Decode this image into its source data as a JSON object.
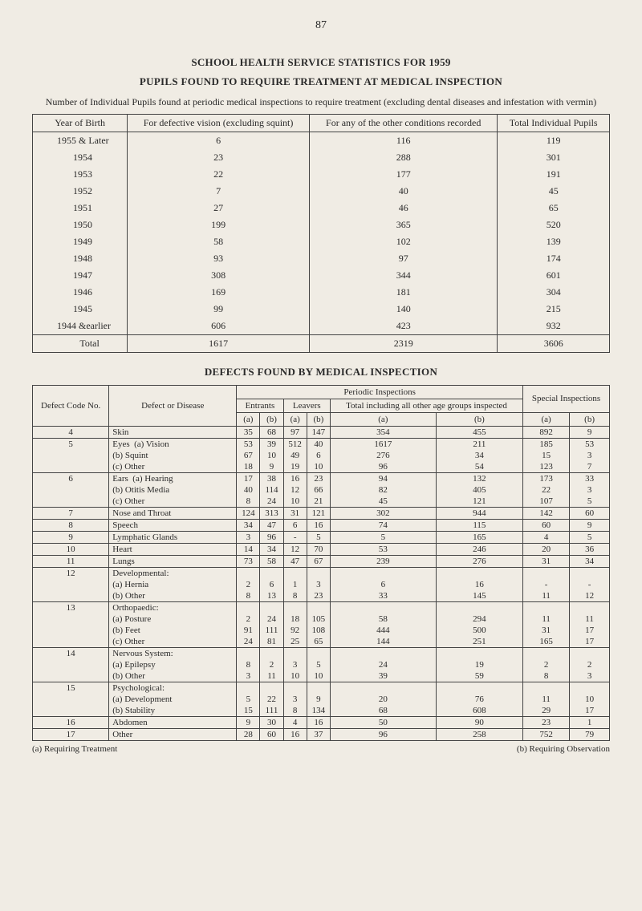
{
  "page_number": "87",
  "title_line1": "SCHOOL HEALTH SERVICE STATISTICS FOR 1959",
  "title_line2": "PUPILS FOUND TO REQUIRE TREATMENT AT MEDICAL INSPECTION",
  "subtitle": "Number of Individual Pupils found at periodic medical inspections to require treatment (excluding dental diseases and infestation with vermin)",
  "table1": {
    "headers": [
      "Year of Birth",
      "For defective vision (excluding squint)",
      "For any of the other conditions recorded",
      "Total Individual Pupils"
    ],
    "rows": [
      {
        "y": "1955 & Later",
        "a": "6",
        "b": "116",
        "c": "119"
      },
      {
        "y": "1954",
        "a": "23",
        "b": "288",
        "c": "301"
      },
      {
        "y": "1953",
        "a": "22",
        "b": "177",
        "c": "191"
      },
      {
        "y": "1952",
        "a": "7",
        "b": "40",
        "c": "45"
      },
      {
        "y": "1951",
        "a": "27",
        "b": "46",
        "c": "65"
      },
      {
        "y": "1950",
        "a": "199",
        "b": "365",
        "c": "520"
      },
      {
        "y": "1949",
        "a": "58",
        "b": "102",
        "c": "139"
      },
      {
        "y": "1948",
        "a": "93",
        "b": "97",
        "c": "174"
      },
      {
        "y": "1947",
        "a": "308",
        "b": "344",
        "c": "601"
      },
      {
        "y": "1946",
        "a": "169",
        "b": "181",
        "c": "304"
      },
      {
        "y": "1945",
        "a": "99",
        "b": "140",
        "c": "215"
      },
      {
        "y": "1944 &earlier",
        "a": "606",
        "b": "423",
        "c": "932"
      }
    ],
    "total": {
      "y": "Total",
      "a": "1617",
      "b": "2319",
      "c": "3606"
    }
  },
  "section2_title": "DEFECTS FOUND BY MEDICAL INSPECTION",
  "table2": {
    "h_defect_no": "Defect Code No.",
    "h_defect": "Defect or Disease",
    "h_periodic": "Periodic Inspections",
    "h_entrants": "Entrants",
    "h_leavers": "Leavers",
    "h_total": "Total including all other age groups inspected",
    "h_special": "Special Inspections",
    "h_a": "(a)",
    "h_b": "(b)",
    "rows": [
      {
        "no": "4",
        "name": "Skin",
        "sub": "",
        "ea": "35",
        "eb": "68",
        "la": "97",
        "lb": "147",
        "ta": "354",
        "tb": "455",
        "sa": "892",
        "sb": "9"
      },
      {
        "no": "5",
        "name": "Eyes",
        "sub": "(a) Vision",
        "ea": "53",
        "eb": "39",
        "la": "512",
        "lb": "40",
        "ta": "1617",
        "tb": "211",
        "sa": "185",
        "sb": "53"
      },
      {
        "no": "",
        "name": "",
        "sub": "(b) Squint",
        "ea": "67",
        "eb": "10",
        "la": "49",
        "lb": "6",
        "ta": "276",
        "tb": "34",
        "sa": "15",
        "sb": "3"
      },
      {
        "no": "",
        "name": "",
        "sub": "(c) Other",
        "ea": "18",
        "eb": "9",
        "la": "19",
        "lb": "10",
        "ta": "96",
        "tb": "54",
        "sa": "123",
        "sb": "7"
      },
      {
        "no": "6",
        "name": "Ears",
        "sub": "(a) Hearing",
        "ea": "17",
        "eb": "38",
        "la": "16",
        "lb": "23",
        "ta": "94",
        "tb": "132",
        "sa": "173",
        "sb": "33"
      },
      {
        "no": "",
        "name": "",
        "sub": "(b) Otitis Media",
        "ea": "40",
        "eb": "114",
        "la": "12",
        "lb": "66",
        "ta": "82",
        "tb": "405",
        "sa": "22",
        "sb": "3"
      },
      {
        "no": "",
        "name": "",
        "sub": "(c) Other",
        "ea": "8",
        "eb": "24",
        "la": "10",
        "lb": "21",
        "ta": "45",
        "tb": "121",
        "sa": "107",
        "sb": "5"
      },
      {
        "no": "7",
        "name": "Nose and Throat",
        "sub": "",
        "ea": "124",
        "eb": "313",
        "la": "31",
        "lb": "121",
        "ta": "302",
        "tb": "944",
        "sa": "142",
        "sb": "60"
      },
      {
        "no": "8",
        "name": "Speech",
        "sub": "",
        "ea": "34",
        "eb": "47",
        "la": "6",
        "lb": "16",
        "ta": "74",
        "tb": "115",
        "sa": "60",
        "sb": "9"
      },
      {
        "no": "9",
        "name": "Lymphatic Glands",
        "sub": "",
        "ea": "3",
        "eb": "96",
        "la": "-",
        "lb": "5",
        "ta": "5",
        "tb": "165",
        "sa": "4",
        "sb": "5"
      },
      {
        "no": "10",
        "name": "Heart",
        "sub": "",
        "ea": "14",
        "eb": "34",
        "la": "12",
        "lb": "70",
        "ta": "53",
        "tb": "246",
        "sa": "20",
        "sb": "36"
      },
      {
        "no": "11",
        "name": "Lungs",
        "sub": "",
        "ea": "73",
        "eb": "58",
        "la": "47",
        "lb": "67",
        "ta": "239",
        "tb": "276",
        "sa": "31",
        "sb": "34"
      },
      {
        "no": "12",
        "name": "Developmental:",
        "sub": "",
        "ea": "",
        "eb": "",
        "la": "",
        "lb": "",
        "ta": "",
        "tb": "",
        "sa": "",
        "sb": ""
      },
      {
        "no": "",
        "name": "",
        "sub": "(a) Hernia",
        "ea": "2",
        "eb": "6",
        "la": "1",
        "lb": "3",
        "ta": "6",
        "tb": "16",
        "sa": "-",
        "sb": "-"
      },
      {
        "no": "",
        "name": "",
        "sub": "(b) Other",
        "ea": "8",
        "eb": "13",
        "la": "8",
        "lb": "23",
        "ta": "33",
        "tb": "145",
        "sa": "11",
        "sb": "12"
      },
      {
        "no": "13",
        "name": "Orthopaedic:",
        "sub": "",
        "ea": "",
        "eb": "",
        "la": "",
        "lb": "",
        "ta": "",
        "tb": "",
        "sa": "",
        "sb": ""
      },
      {
        "no": "",
        "name": "",
        "sub": "(a) Posture",
        "ea": "2",
        "eb": "24",
        "la": "18",
        "lb": "105",
        "ta": "58",
        "tb": "294",
        "sa": "11",
        "sb": "11"
      },
      {
        "no": "",
        "name": "",
        "sub": "(b) Feet",
        "ea": "91",
        "eb": "111",
        "la": "92",
        "lb": "108",
        "ta": "444",
        "tb": "500",
        "sa": "31",
        "sb": "17"
      },
      {
        "no": "",
        "name": "",
        "sub": "(c) Other",
        "ea": "24",
        "eb": "81",
        "la": "25",
        "lb": "65",
        "ta": "144",
        "tb": "251",
        "sa": "165",
        "sb": "17"
      },
      {
        "no": "14",
        "name": "Nervous System:",
        "sub": "",
        "ea": "",
        "eb": "",
        "la": "",
        "lb": "",
        "ta": "",
        "tb": "",
        "sa": "",
        "sb": ""
      },
      {
        "no": "",
        "name": "",
        "sub": "(a) Epilepsy",
        "ea": "8",
        "eb": "2",
        "la": "3",
        "lb": "5",
        "ta": "24",
        "tb": "19",
        "sa": "2",
        "sb": "2"
      },
      {
        "no": "",
        "name": "",
        "sub": "(b) Other",
        "ea": "3",
        "eb": "11",
        "la": "10",
        "lb": "10",
        "ta": "39",
        "tb": "59",
        "sa": "8",
        "sb": "3"
      },
      {
        "no": "15",
        "name": "Psychological:",
        "sub": "",
        "ea": "",
        "eb": "",
        "la": "",
        "lb": "",
        "ta": "",
        "tb": "",
        "sa": "",
        "sb": ""
      },
      {
        "no": "",
        "name": "",
        "sub": "(a) Development",
        "ea": "5",
        "eb": "22",
        "la": "3",
        "lb": "9",
        "ta": "20",
        "tb": "76",
        "sa": "11",
        "sb": "10"
      },
      {
        "no": "",
        "name": "",
        "sub": "(b) Stability",
        "ea": "15",
        "eb": "111",
        "la": "8",
        "lb": "134",
        "ta": "68",
        "tb": "608",
        "sa": "29",
        "sb": "17"
      },
      {
        "no": "16",
        "name": "Abdomen",
        "sub": "",
        "ea": "9",
        "eb": "30",
        "la": "4",
        "lb": "16",
        "ta": "50",
        "tb": "90",
        "sa": "23",
        "sb": "1"
      },
      {
        "no": "17",
        "name": "Other",
        "sub": "",
        "ea": "28",
        "eb": "60",
        "la": "16",
        "lb": "37",
        "ta": "96",
        "tb": "258",
        "sa": "752",
        "sb": "79"
      }
    ]
  },
  "footer_a": "(a) Requiring Treatment",
  "footer_b": "(b) Requiring Observation"
}
